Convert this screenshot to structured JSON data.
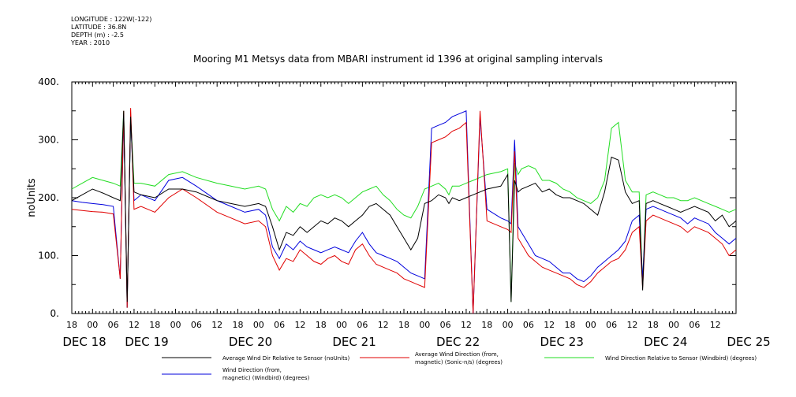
{
  "header": {
    "meta_lines": [
      "LONGITUDE : 122W(-122)",
      "LATITUDE : 36.8N",
      "DEPTH (m) : -2.5",
      "YEAR : 2010"
    ],
    "title": "Mooring M1 Metsys data from MBARI instrument id 1396 at original sampling intervals"
  },
  "colors": {
    "black_series": "#000000",
    "red_series": "#e00000",
    "green_series": "#22dd22",
    "blue_series": "#0000dd"
  },
  "chart_data": {
    "type": "line",
    "title": "Mooring M1 Metsys data from MBARI instrument id 1396 at original sampling intervals",
    "ylabel": "noUnits",
    "xlabel": "",
    "ylim": [
      0,
      400
    ],
    "y_ticks": [
      0,
      100,
      200,
      300,
      400
    ],
    "y_tick_labels": [
      "0.",
      "100.",
      "200.",
      "300.",
      "400."
    ],
    "xlim_hours": [
      -6,
      186
    ],
    "hour_ticks": [
      -6,
      0,
      6,
      12,
      18,
      24,
      30,
      36,
      42,
      48,
      54,
      60,
      66,
      72,
      78,
      84,
      90,
      96,
      102,
      108,
      114,
      120,
      126,
      132,
      138,
      144,
      150,
      156,
      162,
      168,
      174,
      180
    ],
    "hour_tick_labels": [
      "18",
      "00",
      "06",
      "12",
      "18",
      "00",
      "06",
      "12",
      "18",
      "00",
      "06",
      "12",
      "18",
      "00",
      "06",
      "12",
      "18",
      "00",
      "06",
      "12",
      "18",
      "00",
      "06",
      "12",
      "18",
      "00",
      "06",
      "12",
      "18",
      "00",
      "06",
      "12"
    ],
    "day_labels": [
      {
        "label": "DEC 18",
        "hour": -6
      },
      {
        "label": "DEC 19",
        "hour": 12
      },
      {
        "label": "DEC 20",
        "hour": 42
      },
      {
        "label": "DEC 21",
        "hour": 72
      },
      {
        "label": "DEC 22",
        "hour": 102
      },
      {
        "label": "DEC 23",
        "hour": 132
      },
      {
        "label": "DEC 24",
        "hour": 162
      },
      {
        "label": "DEC 25",
        "hour": 186
      }
    ],
    "series": [
      {
        "name": "Average Wind Dir Relative to Sensor (noUnits)",
        "color": "#000000",
        "x": [
          -6,
          -3,
          0,
          3,
          6,
          8,
          9,
          10,
          11,
          12,
          14,
          18,
          22,
          26,
          30,
          36,
          40,
          44,
          48,
          50,
          52,
          54,
          56,
          58,
          60,
          62,
          64,
          66,
          68,
          70,
          72,
          74,
          76,
          78,
          80,
          82,
          84,
          86,
          88,
          90,
          92,
          94,
          96,
          98,
          100,
          102,
          103,
          104,
          106,
          108,
          110,
          112,
          114,
          118,
          120,
          121,
          122,
          123,
          124,
          126,
          128,
          130,
          132,
          134,
          136,
          138,
          140,
          142,
          144,
          146,
          148,
          150,
          152,
          154,
          156,
          158,
          159,
          160,
          162,
          164,
          166,
          168,
          170,
          172,
          174,
          176,
          178,
          180,
          182,
          184,
          186
        ],
        "y": [
          195,
          205,
          215,
          208,
          200,
          195,
          350,
          20,
          340,
          210,
          205,
          200,
          215,
          215,
          210,
          195,
          190,
          185,
          190,
          185,
          150,
          110,
          140,
          135,
          150,
          140,
          150,
          160,
          155,
          165,
          160,
          150,
          160,
          170,
          185,
          190,
          180,
          170,
          150,
          130,
          110,
          130,
          190,
          195,
          205,
          200,
          190,
          200,
          195,
          200,
          205,
          210,
          215,
          220,
          240,
          20,
          230,
          210,
          215,
          220,
          225,
          210,
          215,
          205,
          200,
          200,
          195,
          190,
          180,
          170,
          210,
          270,
          265,
          210,
          190,
          195,
          40,
          190,
          195,
          190,
          185,
          180,
          175,
          180,
          185,
          180,
          175,
          160,
          170,
          150,
          160
        ]
      },
      {
        "name": "Average Wind Direction (from, magnetic) (Sonic-n/s) (degrees)",
        "color": "#e00000",
        "x": [
          -6,
          -3,
          0,
          3,
          6,
          8,
          9,
          10,
          11,
          12,
          14,
          18,
          22,
          26,
          30,
          36,
          40,
          44,
          48,
          50,
          52,
          54,
          56,
          58,
          60,
          62,
          64,
          66,
          68,
          70,
          72,
          74,
          76,
          78,
          80,
          82,
          84,
          86,
          88,
          90,
          92,
          94,
          96,
          98,
          100,
          102,
          103,
          104,
          106,
          108,
          110,
          112,
          114,
          118,
          120,
          121,
          122,
          123,
          124,
          126,
          128,
          130,
          132,
          134,
          136,
          138,
          140,
          142,
          144,
          146,
          148,
          150,
          152,
          154,
          156,
          158,
          159,
          160,
          162,
          164,
          166,
          168,
          170,
          172,
          174,
          176,
          178,
          180,
          182,
          184,
          186
        ],
        "y": [
          180,
          178,
          176,
          175,
          172,
          60,
          350,
          10,
          355,
          180,
          185,
          175,
          200,
          215,
          200,
          175,
          165,
          155,
          160,
          150,
          100,
          75,
          95,
          90,
          110,
          100,
          90,
          85,
          95,
          100,
          90,
          85,
          110,
          120,
          100,
          85,
          80,
          75,
          70,
          60,
          55,
          50,
          45,
          295,
          300,
          305,
          310,
          315,
          320,
          330,
          0,
          350,
          160,
          150,
          145,
          140,
          280,
          130,
          120,
          100,
          90,
          80,
          75,
          70,
          65,
          60,
          50,
          45,
          55,
          70,
          80,
          90,
          95,
          110,
          140,
          150,
          45,
          160,
          170,
          165,
          160,
          155,
          150,
          140,
          150,
          145,
          140,
          130,
          120,
          100,
          110
        ]
      },
      {
        "name": "Wind Direction Relative to Sensor (Windbird) (degrees)",
        "color": "#22dd22",
        "x": [
          -6,
          -3,
          0,
          3,
          6,
          8,
          9,
          10,
          11,
          12,
          14,
          18,
          22,
          26,
          30,
          36,
          40,
          44,
          48,
          50,
          52,
          54,
          56,
          58,
          60,
          62,
          64,
          66,
          68,
          70,
          72,
          74,
          76,
          78,
          80,
          82,
          84,
          86,
          88,
          90,
          92,
          94,
          96,
          98,
          100,
          102,
          103,
          104,
          106,
          108,
          110,
          112,
          114,
          118,
          120,
          121,
          122,
          123,
          124,
          126,
          128,
          130,
          132,
          134,
          136,
          138,
          140,
          142,
          144,
          146,
          148,
          150,
          152,
          154,
          156,
          158,
          159,
          160,
          162,
          164,
          166,
          168,
          170,
          172,
          174,
          176,
          178,
          180,
          182,
          184,
          186
        ],
        "y": [
          215,
          225,
          235,
          230,
          225,
          220,
          350,
          10,
          340,
          225,
          225,
          220,
          240,
          245,
          235,
          225,
          220,
          215,
          220,
          215,
          180,
          160,
          185,
          175,
          190,
          185,
          200,
          205,
          200,
          205,
          200,
          190,
          200,
          210,
          215,
          220,
          205,
          195,
          180,
          170,
          165,
          185,
          215,
          220,
          225,
          215,
          205,
          220,
          220,
          225,
          230,
          235,
          240,
          245,
          250,
          20,
          260,
          240,
          250,
          255,
          250,
          230,
          230,
          225,
          215,
          210,
          200,
          195,
          190,
          200,
          230,
          320,
          330,
          230,
          210,
          210,
          50,
          205,
          210,
          205,
          200,
          200,
          195,
          195,
          200,
          195,
          190,
          185,
          180,
          175,
          180
        ]
      },
      {
        "name": "Wind Direction (from, magnetic) (Windbird) (degrees)",
        "color": "#0000dd",
        "x": [
          -6,
          -3,
          0,
          3,
          6,
          8,
          9,
          10,
          11,
          12,
          14,
          18,
          22,
          26,
          30,
          36,
          40,
          44,
          48,
          50,
          52,
          54,
          56,
          58,
          60,
          62,
          64,
          66,
          68,
          70,
          72,
          74,
          76,
          78,
          80,
          82,
          84,
          86,
          88,
          90,
          92,
          94,
          96,
          98,
          100,
          102,
          103,
          104,
          106,
          108,
          110,
          112,
          114,
          118,
          120,
          121,
          122,
          123,
          124,
          126,
          128,
          130,
          132,
          134,
          136,
          138,
          140,
          142,
          144,
          146,
          148,
          150,
          152,
          154,
          156,
          158,
          159,
          160,
          162,
          164,
          166,
          168,
          170,
          172,
          174,
          176,
          178,
          180,
          182,
          184,
          186
        ],
        "y": [
          195,
          192,
          190,
          188,
          185,
          60,
          340,
          10,
          340,
          195,
          205,
          195,
          230,
          235,
          220,
          195,
          185,
          175,
          180,
          170,
          115,
          95,
          120,
          110,
          125,
          115,
          110,
          105,
          110,
          115,
          110,
          105,
          125,
          140,
          120,
          105,
          100,
          95,
          90,
          80,
          70,
          65,
          60,
          320,
          325,
          330,
          335,
          340,
          345,
          350,
          0,
          340,
          180,
          165,
          160,
          155,
          300,
          150,
          140,
          120,
          100,
          95,
          90,
          80,
          70,
          70,
          60,
          55,
          65,
          80,
          90,
          100,
          110,
          125,
          160,
          170,
          60,
          180,
          185,
          180,
          175,
          170,
          165,
          155,
          165,
          160,
          155,
          140,
          130,
          120,
          130
        ]
      }
    ]
  },
  "legend": {
    "entries": [
      {
        "line1": "Average Wind Dir Relative to Sensor (noUnits)",
        "line2": ""
      },
      {
        "line1": "Average Wind Direction (from,",
        "line2": "magnetic) (Sonic-n/s) (degrees)"
      },
      {
        "line1": "Wind Direction Relative to Sensor (Windbird) (degrees)",
        "line2": ""
      },
      {
        "line1": "Wind Direction (from,",
        "line2": "magnetic) (Windbird) (degrees)"
      }
    ]
  }
}
